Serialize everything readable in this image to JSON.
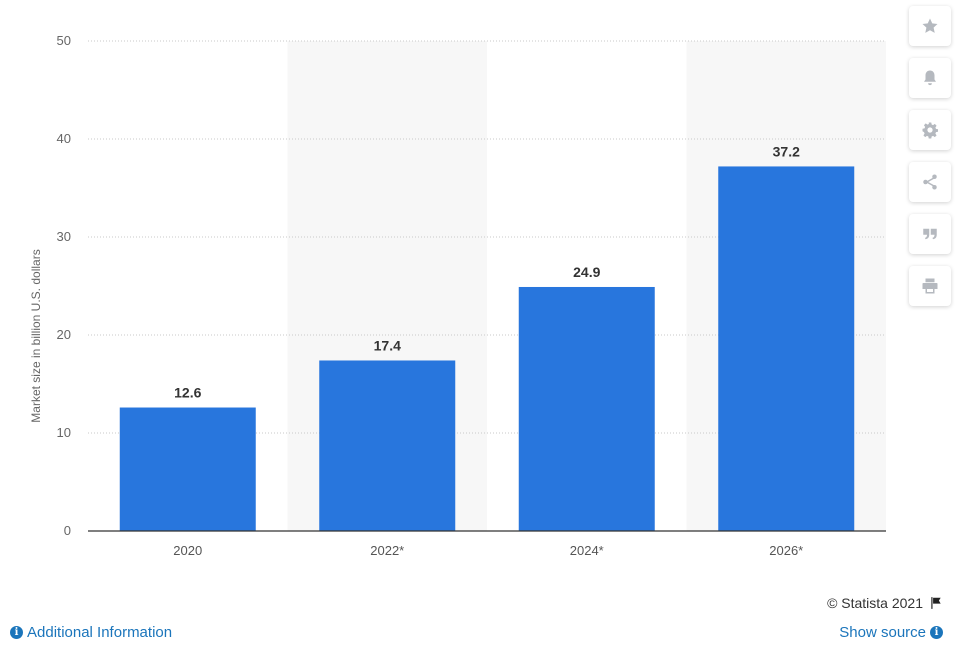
{
  "chart_data": {
    "type": "bar",
    "categories": [
      "2020",
      "2022*",
      "2024*",
      "2026*"
    ],
    "values": [
      12.6,
      17.4,
      24.9,
      37.2
    ],
    "value_labels": [
      "12.6",
      "17.4",
      "24.9",
      "37.2"
    ],
    "ylabel": "Market size in billion U.S. dollars",
    "xlabel": "",
    "ylim": [
      0,
      50
    ],
    "yticks": [
      0,
      10,
      20,
      30,
      40,
      50
    ],
    "grid": true,
    "bar_color": "#2876dd",
    "band_color": "#f7f7f7"
  },
  "toolbar": {
    "icons": [
      "star-icon",
      "bell-icon",
      "gear-icon",
      "share-icon",
      "quote-icon",
      "print-icon"
    ],
    "icon_color": "#b5b9bf"
  },
  "footer": {
    "copyright": "© Statista 2021",
    "additional_info": "Additional Information",
    "show_source": "Show source",
    "link_color": "#1b75bb"
  }
}
